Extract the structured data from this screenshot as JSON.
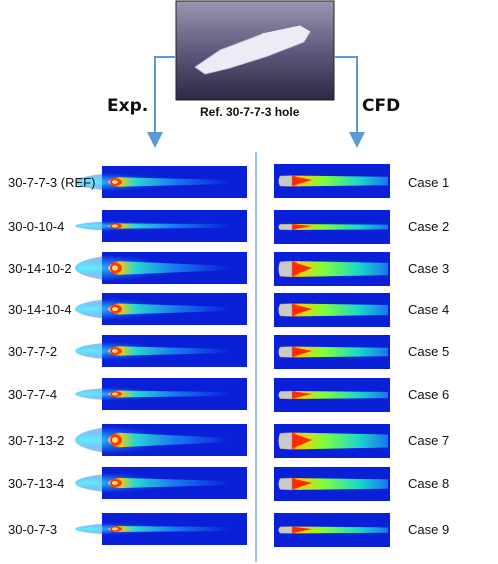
{
  "header": {
    "exp_label": "Exp.",
    "cfd_label": "CFD",
    "reference_caption": "Ref. 30-7-7-3 hole"
  },
  "rows": [
    {
      "exp_name": "30-7-7-3 (REF)",
      "cfd_name": "Case 1"
    },
    {
      "exp_name": "30-0-10-4",
      "cfd_name": "Case 2"
    },
    {
      "exp_name": "30-14-10-2",
      "cfd_name": "Case 3"
    },
    {
      "exp_name": "30-14-10-4",
      "cfd_name": "Case 4"
    },
    {
      "exp_name": "30-7-7-2",
      "cfd_name": "Case 5"
    },
    {
      "exp_name": "30-7-7-4",
      "cfd_name": "Case 6"
    },
    {
      "exp_name": "30-7-13-2",
      "cfd_name": "Case 7"
    },
    {
      "exp_name": "30-7-13-4",
      "cfd_name": "Case 8"
    },
    {
      "exp_name": "30-0-7-3",
      "cfd_name": "Case 9"
    }
  ],
  "colors": {
    "field_background": "#0a1fd8",
    "arrow": "#5b9bd5",
    "divider": "#5b9bd5",
    "render_bg": "#4a4568"
  }
}
